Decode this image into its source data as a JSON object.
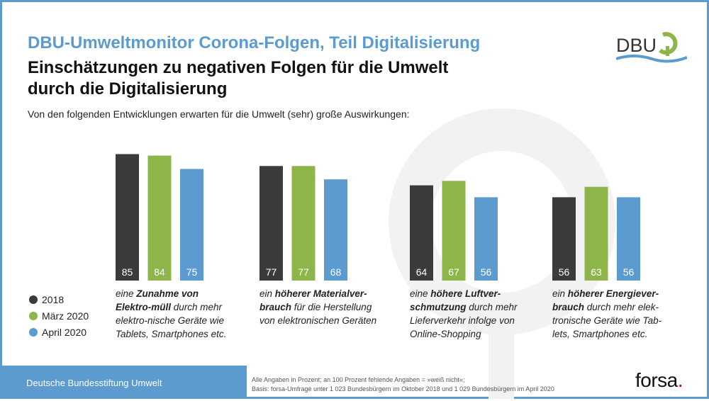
{
  "header": {
    "title": "DBU-Umweltmonitor Corona-Folgen, Teil Digitalisierung",
    "headline": "Einschätzungen zu negativen Folgen für die Umwelt durch die Digitalisierung",
    "subtitle": "Von den folgenden Entwicklungen erwarten für die Umwelt (sehr) große Auswirkungen:",
    "logo_text": "DBU"
  },
  "chart_data": {
    "type": "bar",
    "title": "Einschätzungen zu negativen Folgen für die Umwelt durch die Digitalisierung",
    "ylabel": "Prozent",
    "ylim": [
      0,
      100
    ],
    "grid": false,
    "legend_position": "bottom-left",
    "categories": [
      {
        "pre": "eine ",
        "bold": "Zunahme von Elektro-müll",
        "post": " durch mehr elektro-nische Geräte wie Tablets, Smartphones etc."
      },
      {
        "pre": "ein ",
        "bold": "höherer Materialver-brauch",
        "post": " für die Herstellung von elektronischen Geräten"
      },
      {
        "pre": "eine ",
        "bold": "höhere Luftver-schmutzung",
        "post": " durch mehr Lieferverkehr infolge von Online-Shopping"
      },
      {
        "pre": "ein ",
        "bold": "höherer Energiever-brauch",
        "post": " durch mehr elek-tronische Geräte wie Tab-lets, Smartphones etc."
      }
    ],
    "series": [
      {
        "name": "2018",
        "color": "#3b3b3e",
        "values": [
          85,
          77,
          64,
          56
        ]
      },
      {
        "name": "März 2020",
        "color": "#8db54a",
        "values": [
          84,
          77,
          67,
          63
        ]
      },
      {
        "name": "April 2020",
        "color": "#5b9bd0",
        "values": [
          75,
          68,
          56,
          56
        ]
      }
    ]
  },
  "footer": {
    "org": "Deutsche Bundesstiftung Umwelt",
    "note1": "Alle Angaben in Prozent; an 100 Prozent fehlende Angaben = »weiß nicht«;",
    "note2": "Basis: forsa-Umfrage unter 1 023 Bundesbürgern im Oktober 2018 und 1 029 Bundesbürgern im April 2020",
    "brand": "forsa",
    "brand_dot": "."
  }
}
